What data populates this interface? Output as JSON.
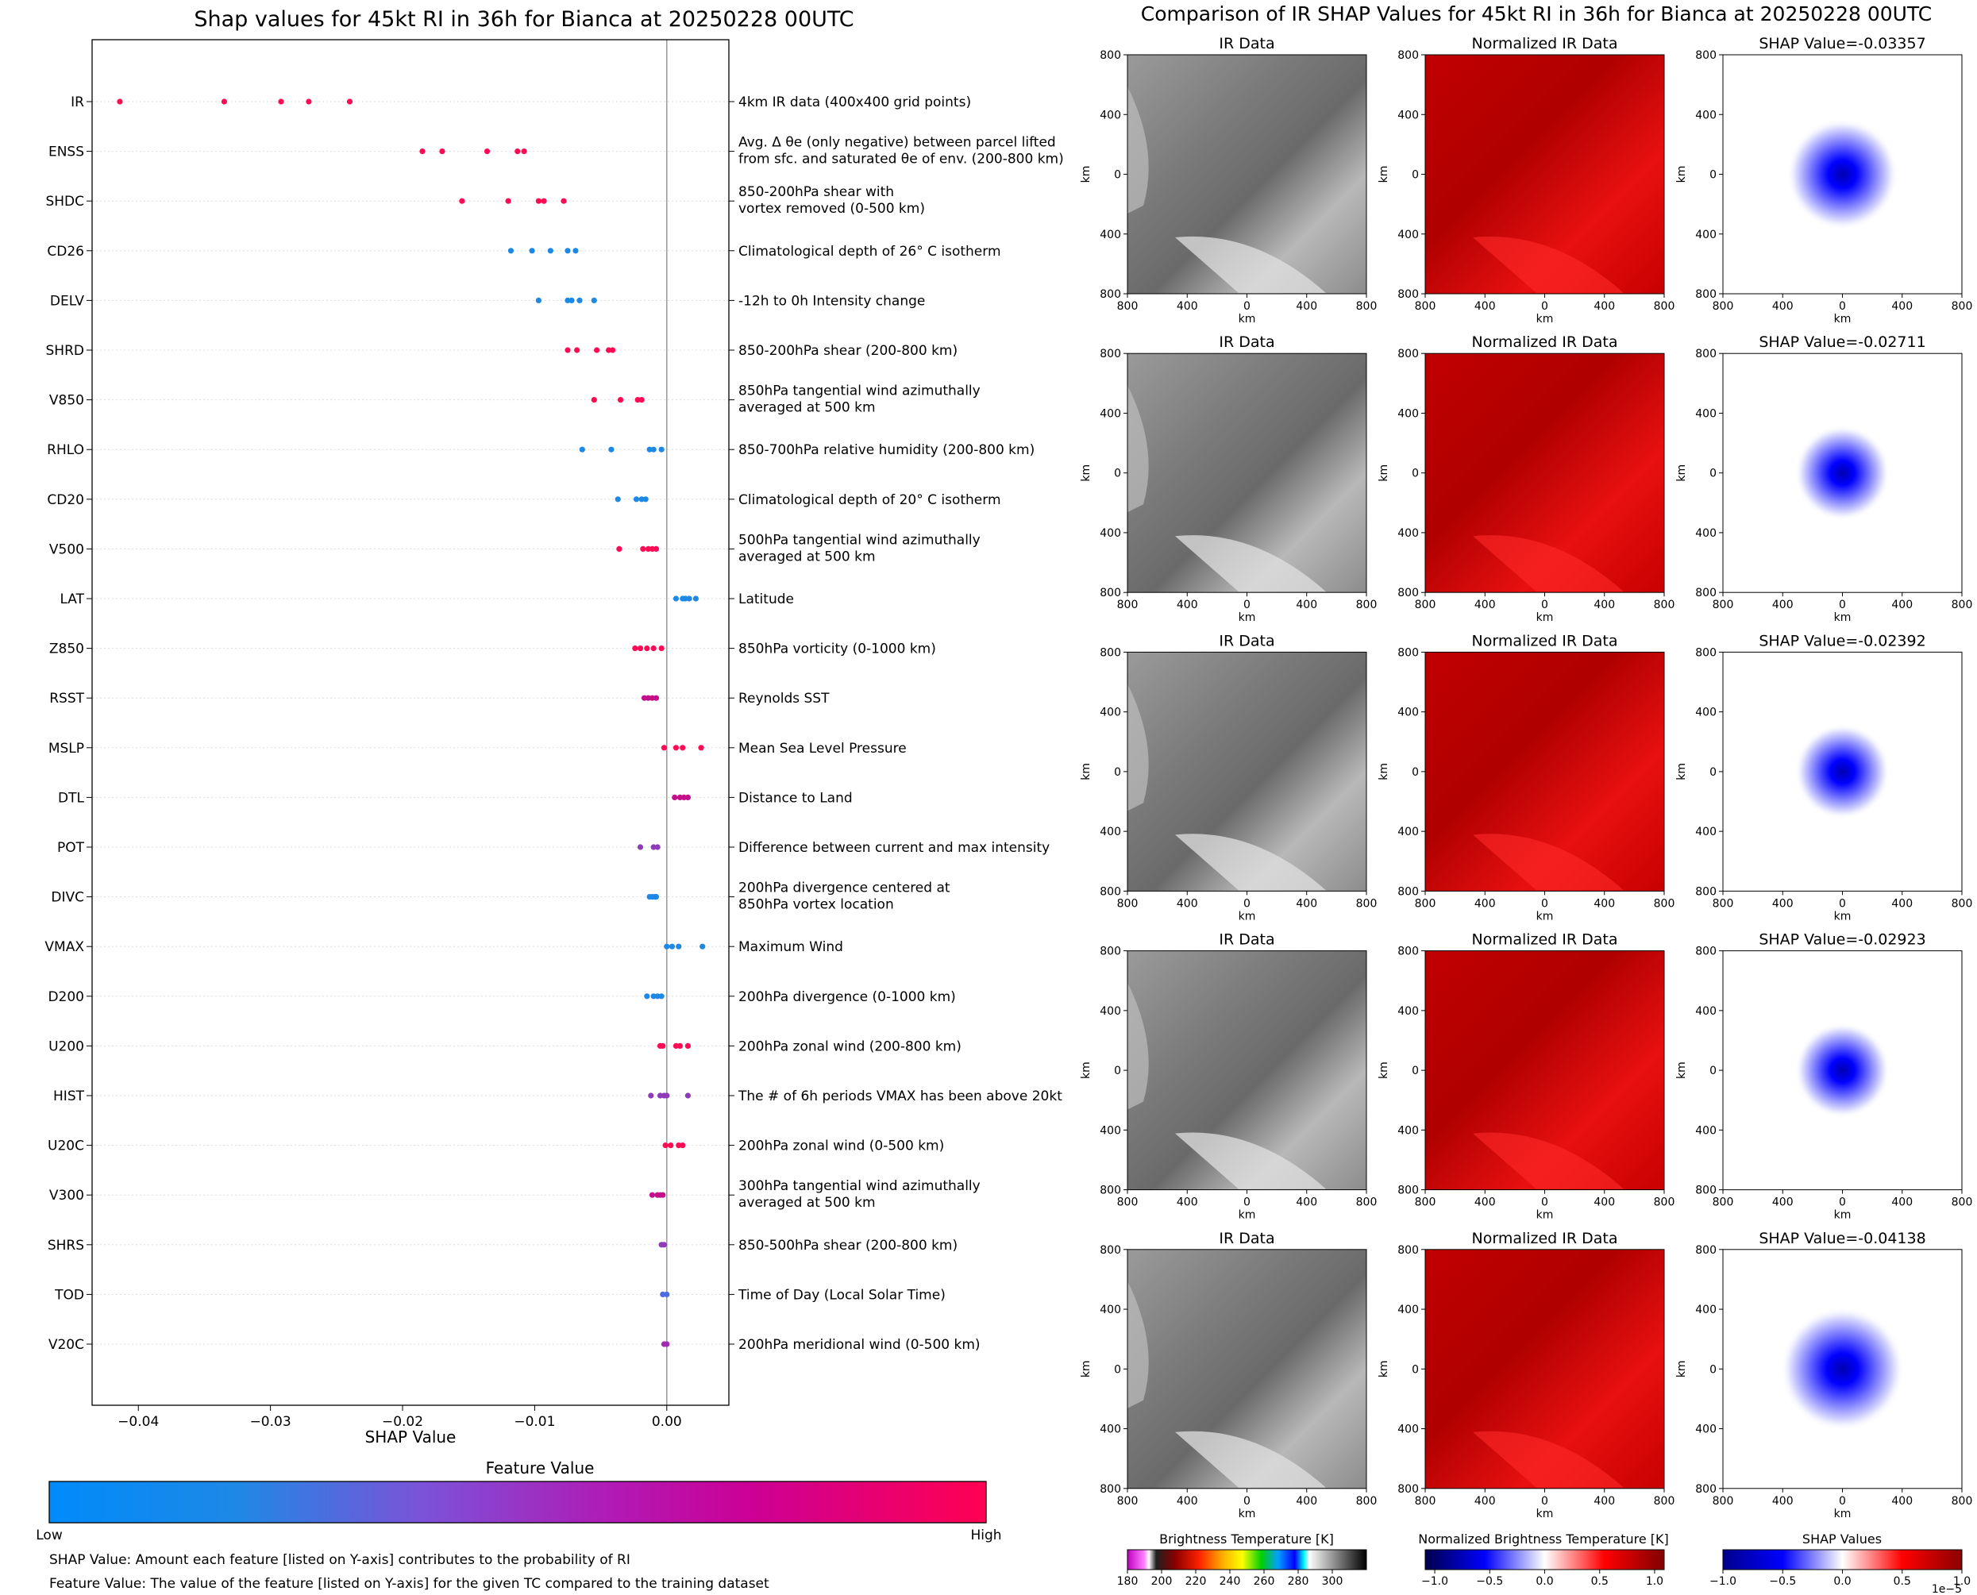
{
  "left_panel": {
    "title": "Shap values for 45kt RI in 36h for Bianca at 20250228 00UTC",
    "xlabel": "SHAP Value",
    "colorbar_title": "Feature Value",
    "colorbar_low": "Low",
    "colorbar_high": "High",
    "colorbar_colors": [
      "#008bfb",
      "#1e88e5",
      "#7c52d8",
      "#b11ab5",
      "#cc0094",
      "#ff0052"
    ],
    "note_shap": "SHAP Value: Amount each feature [listed on Y-axis] contributes to the probability of RI",
    "note_feature": "Feature Value: The value of the feature [listed on Y-axis] for the given TC compared to the training dataset"
  },
  "chart_data": [
    {
      "type": "scatter",
      "title": "Shap values for 45kt RI in 36h for Bianca at 20250228 00UTC",
      "xlabel": "SHAP Value",
      "xlim": [
        -0.0435,
        0.0047
      ],
      "xticks": [
        -0.04,
        -0.03,
        -0.02,
        -0.01,
        0.0
      ],
      "xtick_labels": [
        "−0.04",
        "−0.03",
        "−0.02",
        "−0.01",
        "0.00"
      ],
      "features": [
        {
          "name": "IR",
          "description": [
            "4km IR data (400x400 grid points)"
          ],
          "color": "#ff0a55",
          "values": [
            -0.0414,
            -0.0335,
            -0.0292,
            -0.0271,
            -0.024
          ]
        },
        {
          "name": "ENSS",
          "description": [
            "Avg. Δ θe (only negative) between parcel lifted",
            "from sfc. and saturated θe of env. (200-800 km)"
          ],
          "color": "#ff0a55",
          "values": [
            -0.0185,
            -0.017,
            -0.0136,
            -0.0113,
            -0.0108
          ]
        },
        {
          "name": "SHDC",
          "description": [
            "850-200hPa shear with",
            "vortex removed (0-500 km)"
          ],
          "color": "#ff0a55",
          "values": [
            -0.0155,
            -0.012,
            -0.0097,
            -0.0093,
            -0.0078
          ]
        },
        {
          "name": "CD26",
          "description": [
            "Climatological depth of 26° C isotherm"
          ],
          "color": "#1e88e5",
          "values": [
            -0.0118,
            -0.0102,
            -0.0088,
            -0.0075,
            -0.0069
          ]
        },
        {
          "name": "DELV",
          "description": [
            "-12h to 0h Intensity change"
          ],
          "color": "#1e88e5",
          "values": [
            -0.0097,
            -0.0075,
            -0.0072,
            -0.0066,
            -0.0055
          ]
        },
        {
          "name": "SHRD",
          "description": [
            "850-200hPa shear (200-800 km)"
          ],
          "color": "#ff0a55",
          "values": [
            -0.0075,
            -0.0068,
            -0.0053,
            -0.0044,
            -0.0041
          ]
        },
        {
          "name": "V850",
          "description": [
            "850hPa tangential wind azimuthally",
            "averaged at 500 km"
          ],
          "color": "#ff0a55",
          "values": [
            -0.0055,
            -0.0035,
            -0.0022,
            -0.0019
          ]
        },
        {
          "name": "RHLO",
          "description": [
            "850-700hPa relative humidity (200-800 km)"
          ],
          "color": "#1e88e5",
          "values": [
            -0.0064,
            -0.0042,
            -0.0013,
            -0.001,
            -0.0004
          ]
        },
        {
          "name": "CD20",
          "description": [
            "Climatological depth of 20° C isotherm"
          ],
          "color": "#1e88e5",
          "values": [
            -0.0037,
            -0.0023,
            -0.0019,
            -0.0016
          ]
        },
        {
          "name": "V500",
          "description": [
            "500hPa tangential wind azimuthally",
            "averaged at 500 km"
          ],
          "color": "#ff0a55",
          "values": [
            -0.0036,
            -0.0018,
            -0.0014,
            -0.0011,
            -0.0008
          ]
        },
        {
          "name": "LAT",
          "description": [
            "Latitude"
          ],
          "color": "#1e88e5",
          "values": [
            0.0007,
            0.0012,
            0.0014,
            0.0017,
            0.0022
          ]
        },
        {
          "name": "Z850",
          "description": [
            "850hPa vorticity (0-1000 km)"
          ],
          "color": "#ff0a55",
          "values": [
            -0.0024,
            -0.002,
            -0.0015,
            -0.001,
            -0.0004
          ]
        },
        {
          "name": "RSST",
          "description": [
            "Reynolds SST"
          ],
          "color": "#c4108a",
          "values": [
            -0.0017,
            -0.0014,
            -0.0011,
            -0.0008
          ]
        },
        {
          "name": "MSLP",
          "description": [
            "Mean Sea Level Pressure"
          ],
          "color": "#ff0a55",
          "values": [
            -0.0002,
            0.0007,
            0.0012,
            0.0026
          ]
        },
        {
          "name": "DTL",
          "description": [
            "Distance to Land"
          ],
          "color": "#c4108a",
          "values": [
            0.0006,
            0.001,
            0.0013,
            0.0016
          ]
        },
        {
          "name": "POT",
          "description": [
            "Difference between current and max intensity"
          ],
          "color": "#8e3bb8",
          "values": [
            -0.002,
            -0.001,
            -0.0007
          ]
        },
        {
          "name": "DIVC",
          "description": [
            "200hPa divergence centered at",
            "850hPa vortex location"
          ],
          "color": "#1e88e5",
          "values": [
            -0.0013,
            -0.0011,
            -0.0009,
            -0.0008
          ]
        },
        {
          "name": "VMAX",
          "description": [
            "Maximum Wind"
          ],
          "color": "#1e88e5",
          "values": [
            0.0,
            0.0004,
            0.0009,
            0.0027
          ]
        },
        {
          "name": "D200",
          "description": [
            "200hPa divergence (0-1000 km)"
          ],
          "color": "#1e88e5",
          "values": [
            -0.0015,
            -0.001,
            -0.0007,
            -0.0004
          ]
        },
        {
          "name": "U200",
          "description": [
            "200hPa zonal wind (200-800 km)"
          ],
          "color": "#ff0a55",
          "values": [
            -0.0005,
            -0.0003,
            0.0007,
            0.001,
            0.0016
          ]
        },
        {
          "name": "HIST",
          "description": [
            "The # of 6h periods VMAX has been above 20kt"
          ],
          "color": "#8e3bb8",
          "values": [
            -0.0012,
            -0.0005,
            -0.0002,
            0.0,
            0.0016
          ]
        },
        {
          "name": "U20C",
          "description": [
            "200hPa zonal wind (0-500 km)"
          ],
          "color": "#ff0a55",
          "values": [
            -0.0001,
            0.0003,
            0.0009,
            0.0012
          ]
        },
        {
          "name": "V300",
          "description": [
            "300hPa tangential wind azimuthally",
            "averaged at 500 km"
          ],
          "color": "#c4108a",
          "values": [
            -0.0011,
            -0.0007,
            -0.0005,
            -0.0003
          ]
        },
        {
          "name": "SHRS",
          "description": [
            "850-500hPa shear (200-800 km)"
          ],
          "color": "#8e3bb8",
          "values": [
            -0.0004,
            -0.0002
          ]
        },
        {
          "name": "TOD",
          "description": [
            "Time of Day (Local Solar Time)"
          ],
          "color": "#4f6be0",
          "values": [
            -0.0003,
            0.0
          ]
        },
        {
          "name": "V20C",
          "description": [
            "200hPa meridional wind (0-500 km)"
          ],
          "color": "#a02ab2",
          "values": [
            -0.0002,
            0.0
          ]
        }
      ]
    }
  ],
  "right_panel": {
    "title": "Comparison of IR SHAP Values for 45kt RI in 36h for Bianca at 20250228 00UTC",
    "col_ir_title": "IR Data",
    "col_norm_title": "Normalized IR Data",
    "shap_prefix": "SHAP Value=",
    "shap_values": [
      "-0.03357",
      "-0.02711",
      "-0.02392",
      "-0.02923",
      "-0.04138"
    ],
    "axis_label": "km",
    "axis_ticks": [
      "800",
      "400",
      "0",
      "400",
      "800"
    ],
    "cbar_titles": [
      "Brightness Temperature [K]",
      "Normalized Brightness Temperature [K]",
      "SHAP Values"
    ],
    "cbar1_ticks": [
      "180",
      "200",
      "220",
      "240",
      "260",
      "280",
      "300"
    ],
    "cbar2_ticks": [
      "−1.0",
      "−0.5",
      "0.0",
      "0.5",
      "1.0"
    ],
    "cbar3_ticks": [
      "−1.0",
      "−0.5",
      "0.0",
      "0.5",
      "1.0"
    ],
    "cbar3_exponent": "1e−5"
  }
}
